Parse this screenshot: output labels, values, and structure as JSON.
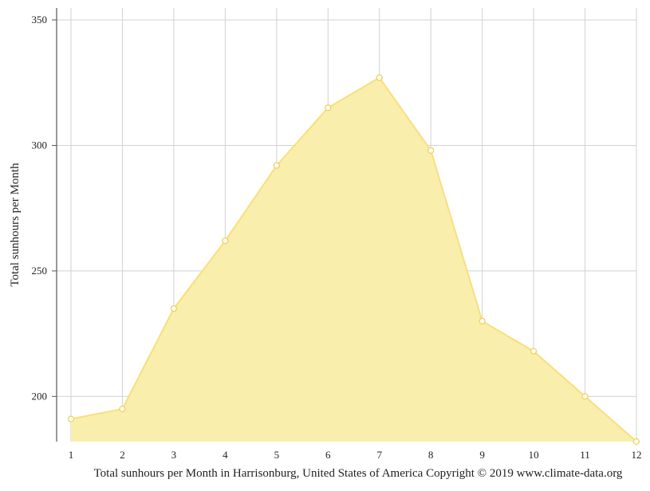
{
  "chart_data": {
    "type": "area",
    "x": [
      1,
      2,
      3,
      4,
      5,
      6,
      7,
      8,
      9,
      10,
      11,
      12
    ],
    "series": [
      {
        "values": [
          191,
          195,
          235,
          262,
          292,
          315,
          327,
          298,
          230,
          218,
          200,
          182
        ]
      }
    ],
    "xlabel": "Total sunhours per Month in Harrisonburg, United States of America Copyright © 2019 www.climate-data.org",
    "ylabel": "Total sunhours per Month",
    "x_ticks": [
      "1",
      "2",
      "3",
      "4",
      "5",
      "6",
      "7",
      "8",
      "9",
      "10",
      "11",
      "12"
    ],
    "y_ticks": [
      {
        "value": 200,
        "label": "200"
      },
      {
        "value": 250,
        "label": "250"
      },
      {
        "value": 300,
        "label": "300"
      },
      {
        "value": 350,
        "label": "350"
      }
    ],
    "xlim": [
      1,
      12
    ],
    "ylim": [
      182,
      354
    ],
    "grid": true,
    "legend": "none",
    "colors": {
      "fill": "#f9eeab",
      "line": "#f7df7e",
      "marker_fill": "#ffffff",
      "marker_stroke": "#f0d25a",
      "grid": "#d2d2d2",
      "axis": "#555555"
    }
  }
}
